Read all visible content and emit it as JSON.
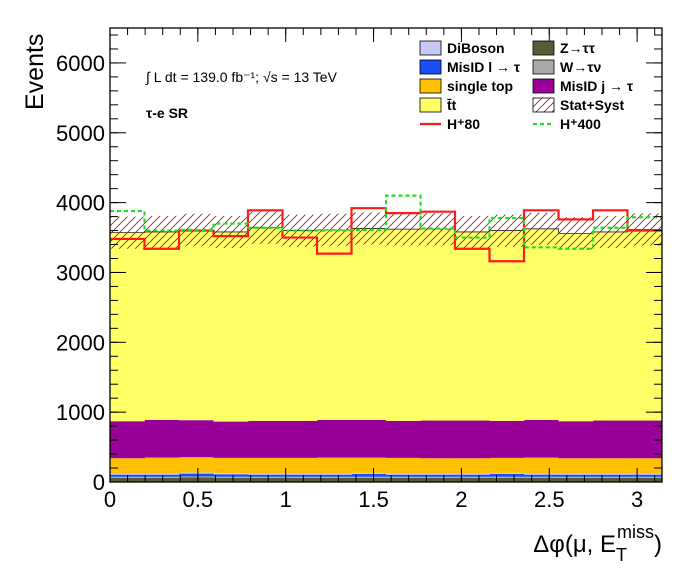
{
  "chart_data": {
    "type": "bar",
    "stacked": true,
    "xlabel_parts": {
      "main": "Δφ(μ, E",
      "sub": "T",
      "sup": "miss",
      "close": ")"
    },
    "ylabel": "Events",
    "xlim": [
      0,
      3.1416
    ],
    "ylim": [
      0,
      6500
    ],
    "x_ticks": [
      0,
      0.5,
      1,
      1.5,
      2,
      2.5,
      3
    ],
    "x_tick_labels": [
      "0",
      "0.5",
      "1",
      "1.5",
      "2",
      "2.5",
      "3"
    ],
    "y_ticks": [
      0,
      1000,
      2000,
      3000,
      4000,
      5000,
      6000
    ],
    "y_tick_labels": [
      "0",
      "1000",
      "2000",
      "3000",
      "4000",
      "5000",
      "6000"
    ],
    "bin_edges": [
      0,
      0.19635,
      0.3927,
      0.58905,
      0.7854,
      0.98175,
      1.1781,
      1.37445,
      1.5708,
      1.76715,
      1.9635,
      2.15985,
      2.3562,
      2.55255,
      2.7489,
      2.94525,
      3.1416
    ],
    "annotations": {
      "lumi": "∫ L dt = 139.0 fb⁻¹;   √s = 13 TeV",
      "region": "τ-e SR"
    },
    "stack": [
      {
        "name": "Z→ττ",
        "color": "#5a5a32",
        "values": [
          60,
          60,
          65,
          60,
          60,
          60,
          60,
          60,
          60,
          60,
          60,
          60,
          60,
          60,
          60,
          60
        ]
      },
      {
        "name": "W→τν",
        "color": "#a9a9a9",
        "values": [
          15,
          15,
          15,
          15,
          15,
          15,
          15,
          15,
          15,
          15,
          15,
          15,
          15,
          15,
          15,
          15
        ]
      },
      {
        "name": "MisID l → τ",
        "color": "#1a4ff7",
        "values": [
          30,
          30,
          40,
          35,
          30,
          30,
          30,
          40,
          30,
          30,
          30,
          40,
          30,
          30,
          30,
          30
        ]
      },
      {
        "name": "DiBoson",
        "color": "#c8c8f5",
        "values": [
          15,
          15,
          15,
          15,
          15,
          15,
          15,
          15,
          15,
          15,
          15,
          15,
          15,
          15,
          15,
          15
        ]
      },
      {
        "name": "single top",
        "color": "#ffc000",
        "values": [
          220,
          230,
          220,
          220,
          225,
          225,
          230,
          220,
          225,
          220,
          220,
          215,
          230,
          220,
          220,
          220
        ]
      },
      {
        "name": "MisID j → τ",
        "color": "#990099",
        "values": [
          530,
          540,
          530,
          520,
          530,
          530,
          540,
          540,
          530,
          540,
          540,
          530,
          540,
          530,
          540,
          540
        ]
      },
      {
        "name": "t̄t",
        "color": "#ffff66",
        "values": [
          2700,
          2690,
          2725,
          2715,
          2765,
          2725,
          2720,
          2740,
          2745,
          2740,
          2700,
          2725,
          2735,
          2690,
          2700,
          2735
        ]
      }
    ],
    "uncertainty": {
      "name": "Stat+Syst",
      "half_width": 230
    },
    "signals": [
      {
        "name": "H⁺80",
        "color": "#ff1a1a",
        "style": "solid",
        "values": [
          3480,
          3340,
          3600,
          3520,
          3890,
          3500,
          3270,
          3920,
          3850,
          3870,
          3340,
          3160,
          3890,
          3760,
          3890,
          3600
        ]
      },
      {
        "name": "H⁺400",
        "color": "#22dd22",
        "style": "dashed",
        "values": [
          3880,
          3600,
          3610,
          3700,
          3640,
          3600,
          3600,
          3610,
          4100,
          3630,
          3500,
          3780,
          3360,
          3340,
          3640,
          3790
        ]
      }
    ],
    "legend": {
      "position": "top-right",
      "entries": [
        {
          "label": "DiBoson",
          "kind": "box",
          "color": "#c8c8f5"
        },
        {
          "label": "Z→ττ",
          "kind": "box",
          "color": "#5a5a32"
        },
        {
          "label": "MisID l → τ",
          "kind": "box",
          "color": "#1a4ff7"
        },
        {
          "label": "W→τν",
          "kind": "box",
          "color": "#a9a9a9"
        },
        {
          "label": "single top",
          "kind": "box",
          "color": "#ffc000"
        },
        {
          "label": "MisID j → τ",
          "kind": "box",
          "color": "#990099"
        },
        {
          "label": "t̄t",
          "kind": "box",
          "color": "#ffff66"
        },
        {
          "label": "Stat+Syst",
          "kind": "hatch",
          "color": "#cc3333"
        },
        {
          "label": "H⁺80",
          "kind": "line",
          "color": "#ff1a1a"
        },
        {
          "label": "H⁺400",
          "kind": "dash",
          "color": "#22dd22"
        }
      ]
    },
    "grid": false
  }
}
